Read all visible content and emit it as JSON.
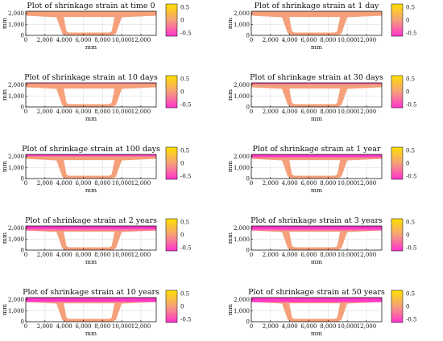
{
  "figure": {
    "colorbar_ticks": [
      "0.5",
      "0",
      "-0.5"
    ],
    "colors": {
      "pink": "#ff33cc",
      "peach": "#f5a07a",
      "gold": "#ffe000",
      "frame": "#000000",
      "grid": "#d8d8d8"
    }
  },
  "chart_data": [
    {
      "type": "contour-section",
      "title": "Plot of shrinkage strain at time 0",
      "xlabel": "mm",
      "ylabel": "mm",
      "x_ticks": [
        "0",
        "2,000",
        "4,000",
        "6,000",
        "8,000",
        "10,000",
        "12,000"
      ],
      "y_ticks": [
        "0",
        "1,000",
        "2,000"
      ],
      "xlim": [
        0,
        13600
      ],
      "ylim": [
        0,
        2200
      ],
      "colorbar_range": [
        -0.5,
        0.5
      ],
      "top_slab_strained_fraction": 0.0
    },
    {
      "type": "contour-section",
      "title": "Plot of shrinkage strain at 1 day",
      "xlabel": "mm",
      "ylabel": "mm",
      "x_ticks": [
        "0",
        "2,000",
        "4,000",
        "6,000",
        "8,000",
        "10,000",
        "12,000"
      ],
      "y_ticks": [
        "0",
        "1,000",
        "2,000"
      ],
      "xlim": [
        0,
        13600
      ],
      "ylim": [
        0,
        2200
      ],
      "colorbar_range": [
        -0.5,
        0.5
      ],
      "top_slab_strained_fraction": 0.05
    },
    {
      "type": "contour-section",
      "title": "Plot of shrinkage strain at 10 days",
      "xlabel": "mm",
      "ylabel": "mm",
      "x_ticks": [
        "0",
        "2,000",
        "4,000",
        "6,000",
        "8,000",
        "10,000",
        "12,000"
      ],
      "y_ticks": [
        "0",
        "1,000",
        "2,000"
      ],
      "xlim": [
        0,
        13600
      ],
      "ylim": [
        0,
        2200
      ],
      "colorbar_range": [
        -0.5,
        0.5
      ],
      "top_slab_strained_fraction": 0.12
    },
    {
      "type": "contour-section",
      "title": "Plot of shrinkage strain at 30 days",
      "xlabel": "mm",
      "ylabel": "mm",
      "x_ticks": [
        "0",
        "2,000",
        "4,000",
        "6,000",
        "8,000",
        "10,000",
        "12,000"
      ],
      "y_ticks": [
        "0",
        "1,000",
        "2,000"
      ],
      "xlim": [
        0,
        13600
      ],
      "ylim": [
        0,
        2200
      ],
      "colorbar_range": [
        -0.5,
        0.5
      ],
      "top_slab_strained_fraction": 0.2
    },
    {
      "type": "contour-section",
      "title": "Plot of shrinkage strain at 100 days",
      "xlabel": "mm",
      "ylabel": "mm",
      "x_ticks": [
        "0",
        "2,000",
        "4,000",
        "6,000",
        "8,000",
        "10,000",
        "12,000"
      ],
      "y_ticks": [
        "0",
        "1,000",
        "2,000"
      ],
      "xlim": [
        0,
        13600
      ],
      "ylim": [
        0,
        2200
      ],
      "colorbar_range": [
        -0.5,
        0.5
      ],
      "top_slab_strained_fraction": 0.35
    },
    {
      "type": "contour-section",
      "title": "Plot of shrinkage strain at 1 year",
      "xlabel": "mm",
      "ylabel": "mm",
      "x_ticks": [
        "0",
        "2,000",
        "4,000",
        "6,000",
        "8,000",
        "10,000",
        "12,000"
      ],
      "y_ticks": [
        "0",
        "1,000",
        "2,000"
      ],
      "xlim": [
        0,
        13600
      ],
      "ylim": [
        0,
        2200
      ],
      "colorbar_range": [
        -0.5,
        0.5
      ],
      "top_slab_strained_fraction": 0.55
    },
    {
      "type": "contour-section",
      "title": "Plot of shrinkage strain at 2 years",
      "xlabel": "mm",
      "ylabel": "mm",
      "x_ticks": [
        "0",
        "2,000",
        "4,000",
        "6,000",
        "8,000",
        "10,000",
        "12,000"
      ],
      "y_ticks": [
        "0",
        "1,000",
        "2,000"
      ],
      "xlim": [
        0,
        13600
      ],
      "ylim": [
        0,
        2200
      ],
      "colorbar_range": [
        -0.5,
        0.5
      ],
      "top_slab_strained_fraction": 0.7
    },
    {
      "type": "contour-section",
      "title": "Plot of shrinkage strain at 3 years",
      "xlabel": "mm",
      "ylabel": "mm",
      "x_ticks": [
        "0",
        "2,000",
        "4,000",
        "6,000",
        "8,000",
        "10,000",
        "12,000"
      ],
      "y_ticks": [
        "0",
        "1,000",
        "2,000"
      ],
      "xlim": [
        0,
        13600
      ],
      "ylim": [
        0,
        2200
      ],
      "colorbar_range": [
        -0.5,
        0.5
      ],
      "top_slab_strained_fraction": 0.8
    },
    {
      "type": "contour-section",
      "title": "Plot of shrinkage strain at 10 years",
      "xlabel": "mm",
      "ylabel": "mm",
      "x_ticks": [
        "0",
        "2,000",
        "4,000",
        "6,000",
        "8,000",
        "10,000",
        "12,000"
      ],
      "y_ticks": [
        "0",
        "1,000",
        "2,000"
      ],
      "xlim": [
        0,
        13600
      ],
      "ylim": [
        0,
        2200
      ],
      "colorbar_range": [
        -0.5,
        0.5
      ],
      "top_slab_strained_fraction": 0.92
    },
    {
      "type": "contour-section",
      "title": "Plot of shrinkage strain at 50 years",
      "xlabel": "mm",
      "ylabel": "mm",
      "x_ticks": [
        "0",
        "2,000",
        "4,000",
        "6,000",
        "8,000",
        "10,000",
        "12,000"
      ],
      "y_ticks": [
        "0",
        "1,000",
        "2,000"
      ],
      "xlim": [
        0,
        13600
      ],
      "ylim": [
        0,
        2200
      ],
      "colorbar_range": [
        -0.5,
        0.5
      ],
      "top_slab_strained_fraction": 1.0
    }
  ]
}
